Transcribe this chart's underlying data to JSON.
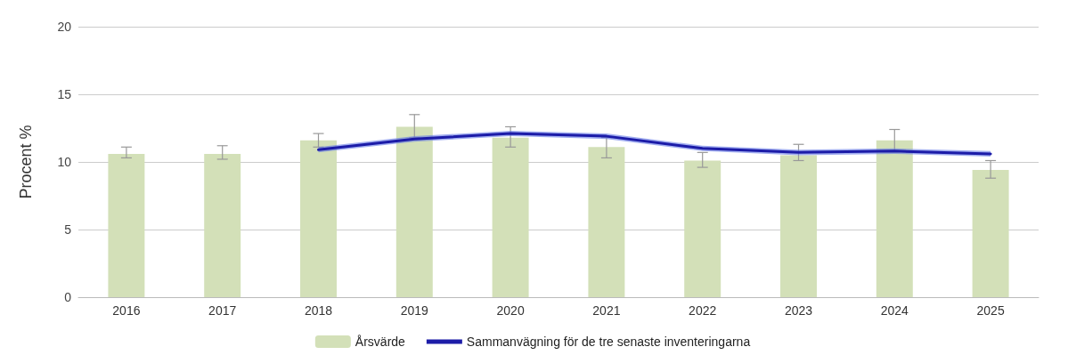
{
  "chart_data": {
    "type": "bar",
    "ylabel": "Procent %",
    "categories": [
      "2016",
      "2017",
      "2018",
      "2019",
      "2020",
      "2021",
      "2022",
      "2023",
      "2024",
      "2025"
    ],
    "series": [
      {
        "name": "Årsvärde",
        "color": "#d3e0b8",
        "values": [
          10.6,
          10.6,
          11.6,
          12.6,
          11.8,
          11.1,
          10.1,
          10.5,
          11.6,
          9.4
        ],
        "errors": [
          [
            10.3,
            11.1
          ],
          [
            10.2,
            11.2
          ],
          [
            11.1,
            12.1
          ],
          [
            11.8,
            13.5
          ],
          [
            11.1,
            12.6
          ],
          [
            10.3,
            11.8
          ],
          [
            9.6,
            10.7
          ],
          [
            10.1,
            11.3
          ],
          [
            10.8,
            12.4
          ],
          [
            8.8,
            10.1
          ]
        ]
      },
      {
        "type": "line",
        "name": "Sammanvägning för de tre senaste inventeringarna",
        "color": "#1c1ca8",
        "values": [
          null,
          null,
          10.9,
          11.7,
          12.1,
          11.9,
          11.0,
          10.7,
          10.8,
          10.6
        ],
        "lower": [
          null,
          null,
          10.7,
          11.5,
          11.9,
          11.7,
          10.8,
          10.5,
          10.6,
          10.4
        ],
        "upper": [
          null,
          null,
          11.1,
          11.9,
          12.3,
          12.1,
          11.2,
          10.9,
          11.0,
          10.8
        ]
      }
    ],
    "ylim": [
      0,
      20
    ],
    "yticks": [
      0,
      5,
      10,
      15,
      20
    ],
    "grid": "y",
    "legend": "bottom",
    "marker": "none",
    "line_style": "solid"
  }
}
